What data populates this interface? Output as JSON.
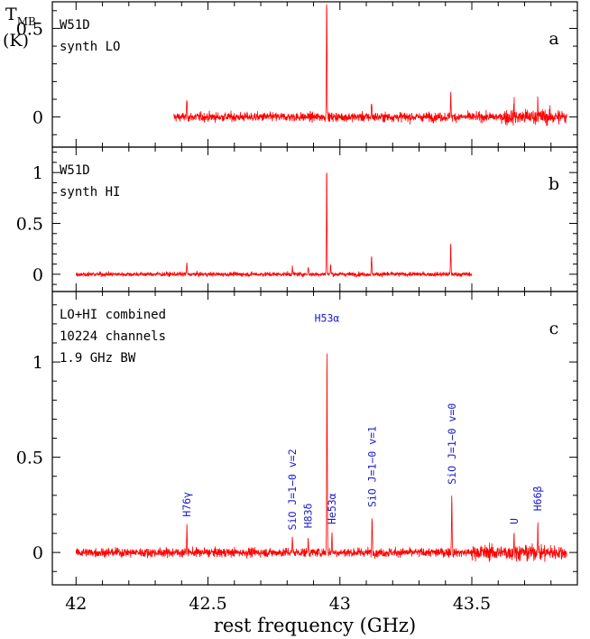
{
  "chart_data": [
    {
      "panel": "a",
      "type": "line",
      "annotations": [
        "W51D",
        "synth LO"
      ],
      "ylabel": "T_MB (K)",
      "ylim": [
        -0.17,
        0.65
      ],
      "yticks": [
        0,
        0.5
      ],
      "xlim": [
        41.91,
        43.9
      ],
      "x_range": [
        42.37,
        43.86
      ],
      "noise_rms": 0.022,
      "noise_band_edge": 43.62,
      "lines": [
        {
          "x": 42.42,
          "y": 0.1
        },
        {
          "x": 42.95,
          "y": 0.7
        },
        {
          "x": 43.12,
          "y": 0.08
        },
        {
          "x": 43.42,
          "y": 0.14
        },
        {
          "x": 43.66,
          "y": 0.07
        },
        {
          "x": 43.75,
          "y": 0.1
        }
      ]
    },
    {
      "panel": "b",
      "type": "line",
      "annotations": [
        "W51D",
        "synth HI"
      ],
      "ylim": [
        -0.17,
        1.25
      ],
      "yticks": [
        0,
        0.5,
        1
      ],
      "xlim": [
        41.91,
        43.9
      ],
      "x_range": [
        42.0,
        43.5
      ],
      "noise_rms": 0.018,
      "lines": [
        {
          "x": 42.42,
          "y": 0.12
        },
        {
          "x": 42.82,
          "y": 0.07
        },
        {
          "x": 42.88,
          "y": 0.08
        },
        {
          "x": 42.95,
          "y": 1.07
        },
        {
          "x": 42.965,
          "y": 0.1
        },
        {
          "x": 43.12,
          "y": 0.18
        },
        {
          "x": 43.42,
          "y": 0.3
        }
      ]
    },
    {
      "panel": "c",
      "type": "line",
      "annotations": [
        "LO+HI combined",
        "10224 channels",
        "1.9 GHz BW"
      ],
      "xlabel": "rest frequency (GHz)",
      "xlim": [
        41.91,
        43.9
      ],
      "xticks": [
        42,
        42.5,
        43,
        43.5
      ],
      "ylim": [
        -0.17,
        1.37
      ],
      "yticks": [
        0,
        0.5,
        1
      ],
      "x_range": [
        42.0,
        43.86
      ],
      "noise_rms": 0.02,
      "noise_band_edge": 43.5,
      "lines": [
        {
          "x": 42.42,
          "y": 0.14,
          "label": "H76γ"
        },
        {
          "x": 42.82,
          "y": 0.07,
          "label": "SiO J=1−0 v=2"
        },
        {
          "x": 42.88,
          "y": 0.08,
          "label": "H83δ"
        },
        {
          "x": 42.951,
          "y": 1.07,
          "label": "H53α"
        },
        {
          "x": 42.97,
          "y": 0.1,
          "label": "He53α"
        },
        {
          "x": 43.122,
          "y": 0.19,
          "label": "SiO J=1−0 v=1"
        },
        {
          "x": 43.424,
          "y": 0.31,
          "label": "SiO J=1−0 v=0"
        },
        {
          "x": 43.66,
          "y": 0.1,
          "label": "U"
        },
        {
          "x": 43.75,
          "y": 0.17,
          "label": "H66β"
        }
      ]
    }
  ],
  "colors": {
    "spectrum": "#ff0000",
    "line_labels": "#1a1acc",
    "axes": "#000000"
  }
}
